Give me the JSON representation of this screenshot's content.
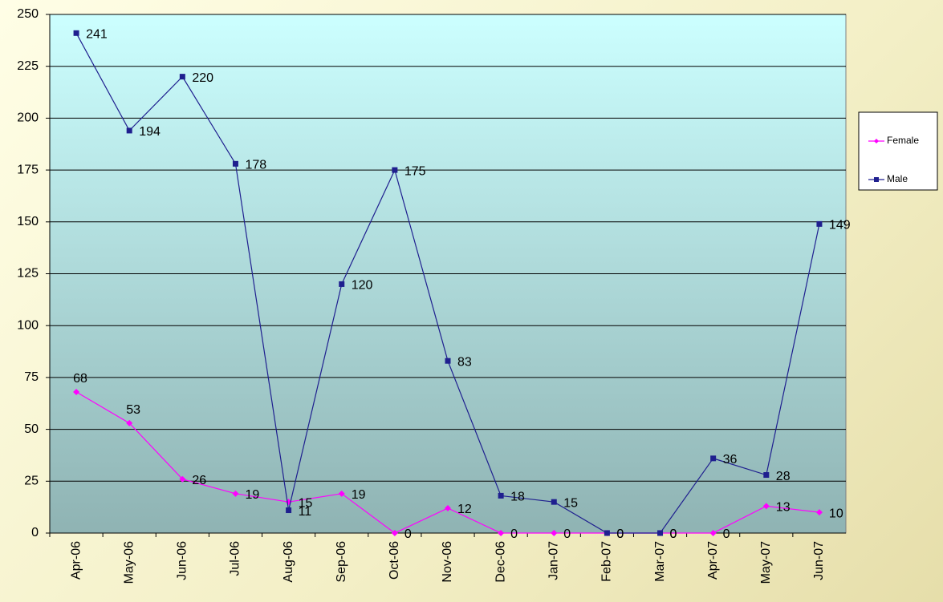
{
  "chart_data": {
    "type": "line",
    "categories": [
      "Apr-06",
      "May-06",
      "Jun-06",
      "Jul-06",
      "Aug-06",
      "Sep-06",
      "Oct-06",
      "Nov-06",
      "Dec-06",
      "Jan-07",
      "Feb-07",
      "Mar-07",
      "Apr-07",
      "May-07",
      "Jun-07"
    ],
    "series": [
      {
        "name": "Female",
        "color": "#ff00ff",
        "marker": "diamond",
        "values": [
          68,
          53,
          26,
          19,
          15,
          19,
          0,
          12,
          0,
          0,
          0,
          0,
          0,
          13,
          10
        ]
      },
      {
        "name": "Male",
        "color": "#1f1f8f",
        "marker": "square",
        "values": [
          241,
          194,
          220,
          178,
          11,
          120,
          175,
          83,
          18,
          15,
          0,
          0,
          36,
          28,
          149
        ]
      }
    ],
    "ylim": [
      0,
      250
    ],
    "yticks": [
      0,
      25,
      50,
      75,
      100,
      125,
      150,
      175,
      200,
      225,
      250
    ],
    "grid": true,
    "legend": "right"
  }
}
